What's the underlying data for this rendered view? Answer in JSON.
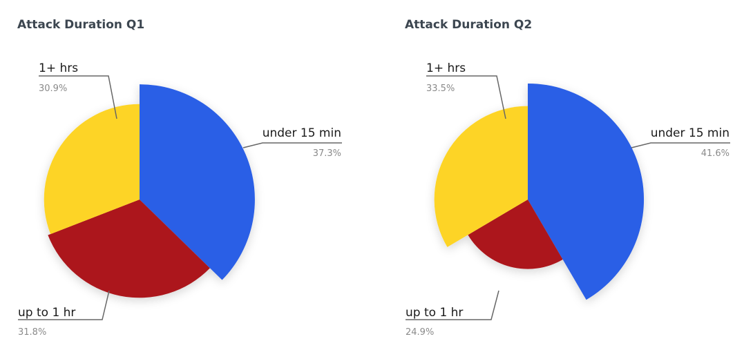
{
  "chart_data": [
    {
      "type": "pie",
      "title": "Attack Duration Q1",
      "slices": [
        {
          "name": "under 15 min",
          "percent_label": "37.3%",
          "value": 37.3,
          "color": "#2b5ee6"
        },
        {
          "name": "up to 1 hr",
          "percent_label": "31.8%",
          "value": 31.8,
          "color": "#ac161a"
        },
        {
          "name": "1+ hrs",
          "percent_label": "30.9%",
          "value": 30.9,
          "color": "#fdd425"
        }
      ],
      "legend": "none",
      "note": "radius of each slice is proportional to its value"
    },
    {
      "type": "pie",
      "title": "Attack Duration Q2",
      "slices": [
        {
          "name": "under 15 min",
          "percent_label": "41.6%",
          "value": 41.6,
          "color": "#2b5ee6"
        },
        {
          "name": "up to 1 hr",
          "percent_label": "24.9%",
          "value": 24.9,
          "color": "#ac161a"
        },
        {
          "name": "1+ hrs",
          "percent_label": "33.5%",
          "value": 33.5,
          "color": "#fdd425"
        }
      ],
      "legend": "none",
      "note": "radius of each slice is proportional to its value"
    }
  ]
}
